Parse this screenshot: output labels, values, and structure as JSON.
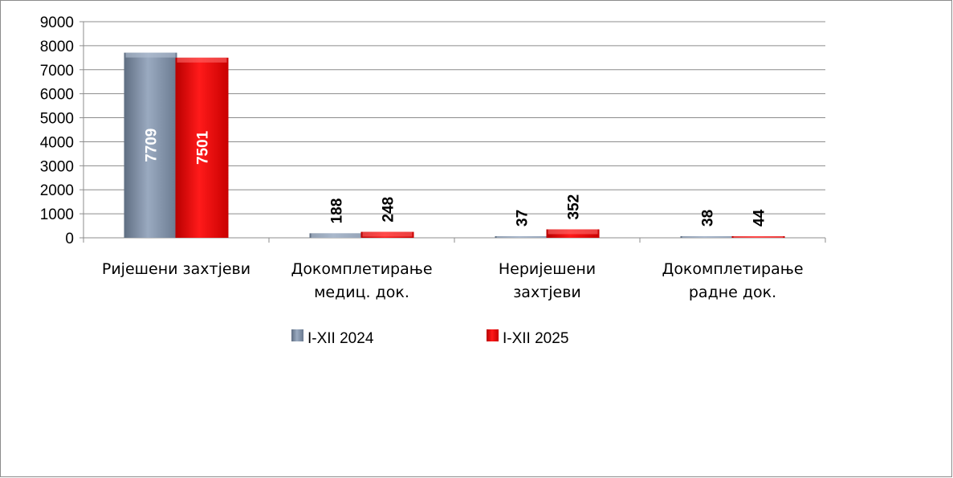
{
  "chart_data": {
    "type": "bar",
    "title": "",
    "xlabel": "",
    "ylabel": "",
    "ylim": [
      0,
      9000
    ],
    "yticks": [
      "0",
      "1000",
      "2000",
      "3000",
      "4000",
      "5000",
      "6000",
      "7000",
      "8000",
      "9000"
    ],
    "grid": true,
    "legend_position": "bottom",
    "categories": [
      [
        "Ријешени захтјеви"
      ],
      [
        "Докомплетирање",
        "медиц. док."
      ],
      [
        "Неријешени",
        "захтјеви"
      ],
      [
        "Докомплетирање",
        "радне док."
      ]
    ],
    "series": [
      {
        "name": "I-XII 2024",
        "color": "#8496b0",
        "values": [
          7709,
          188,
          37,
          38
        ],
        "data_labels": [
          "7709",
          "188",
          "37",
          "38"
        ]
      },
      {
        "name": "I-XII 2025",
        "color": "#ff0000",
        "values": [
          7501,
          248,
          352,
          44
        ],
        "data_labels": [
          "7501",
          "248",
          "352",
          "44"
        ]
      }
    ]
  }
}
